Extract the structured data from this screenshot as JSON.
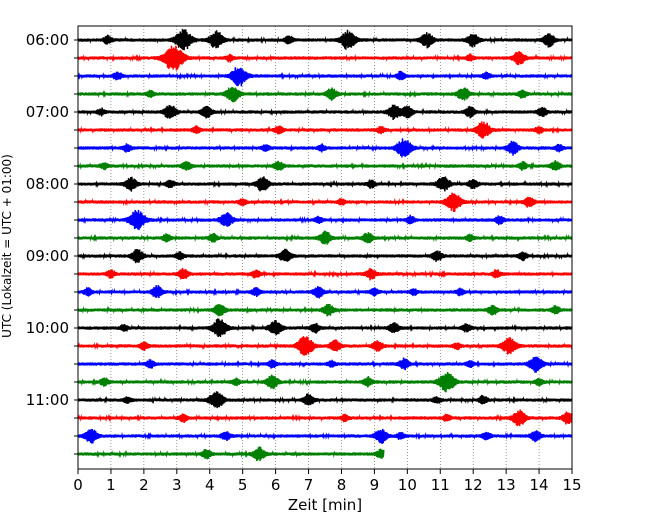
{
  "chart_data": {
    "type": "line",
    "subtype": "helicorder-seismogram",
    "xlabel": "Zeit  [min]",
    "ylabel": "UTC (Lokalzeit = UTC + 01:00)",
    "xlim": [
      0,
      15
    ],
    "x_ticks": [
      0,
      1,
      2,
      3,
      4,
      5,
      6,
      7,
      8,
      9,
      10,
      11,
      12,
      13,
      14,
      15
    ],
    "x_tick_labels": [
      "0",
      "1",
      "2",
      "3",
      "4",
      "5",
      "6",
      "7",
      "8",
      "9",
      "10",
      "11",
      "12",
      "13",
      "14",
      "15"
    ],
    "y_tick_labels": [
      "06:00",
      "07:00",
      "08:00",
      "09:00",
      "10:00",
      "11:00"
    ],
    "minutes_per_trace": 15,
    "vertical_grid": "dotted",
    "colors": [
      "#000000",
      "#ff0000",
      "#0000ff",
      "#008000"
    ],
    "traces": [
      {
        "start": "06:00",
        "color": "#000000",
        "end_min": 15,
        "bursts": [
          [
            3.2,
            1.6
          ],
          [
            4.2,
            1.3
          ],
          [
            8.2,
            1.4
          ],
          [
            10.6,
            1.1
          ],
          [
            12.0,
            1.0
          ],
          [
            14.3,
            1.0
          ],
          [
            0.9,
            0.6
          ],
          [
            6.4,
            0.6
          ]
        ]
      },
      {
        "start": "06:15",
        "color": "#ff0000",
        "end_min": 15,
        "bursts": [
          [
            2.9,
            2.0
          ],
          [
            13.4,
            1.0
          ],
          [
            4.6,
            0.5
          ],
          [
            11.9,
            0.5
          ]
        ]
      },
      {
        "start": "06:30",
        "color": "#0000ff",
        "end_min": 15,
        "bursts": [
          [
            4.9,
            1.5
          ],
          [
            1.2,
            0.6
          ],
          [
            9.8,
            0.6
          ],
          [
            12.4,
            0.5
          ]
        ]
      },
      {
        "start": "06:45",
        "color": "#008000",
        "end_min": 15,
        "bursts": [
          [
            4.7,
            1.2
          ],
          [
            7.7,
            0.9
          ],
          [
            11.7,
            1.0
          ],
          [
            13.5,
            0.6
          ],
          [
            2.2,
            0.5
          ]
        ]
      },
      {
        "start": "07:00",
        "color": "#000000",
        "end_min": 15,
        "bursts": [
          [
            2.8,
            1.1
          ],
          [
            3.9,
            0.9
          ],
          [
            9.6,
            1.1
          ],
          [
            10.0,
            0.9
          ],
          [
            11.9,
            0.8
          ],
          [
            14.1,
            0.7
          ],
          [
            0.7,
            0.5
          ]
        ]
      },
      {
        "start": "07:15",
        "color": "#ff0000",
        "end_min": 15,
        "bursts": [
          [
            12.3,
            1.3
          ],
          [
            3.6,
            0.5
          ],
          [
            6.1,
            0.6
          ],
          [
            9.2,
            0.5
          ],
          [
            14.0,
            0.5
          ]
        ]
      },
      {
        "start": "07:30",
        "color": "#0000ff",
        "end_min": 15,
        "bursts": [
          [
            9.9,
            1.4
          ],
          [
            13.2,
            1.0
          ],
          [
            1.5,
            0.6
          ],
          [
            5.7,
            0.5
          ],
          [
            7.4,
            0.5
          ],
          [
            14.6,
            0.5
          ]
        ]
      },
      {
        "start": "07:45",
        "color": "#008000",
        "end_min": 15,
        "bursts": [
          [
            3.3,
            0.7
          ],
          [
            6.1,
            0.7
          ],
          [
            13.5,
            0.6
          ],
          [
            14.5,
            0.7
          ],
          [
            0.8,
            0.5
          ]
        ]
      },
      {
        "start": "08:00",
        "color": "#000000",
        "end_min": 15,
        "bursts": [
          [
            1.6,
            1.0
          ],
          [
            5.6,
            1.1
          ],
          [
            11.1,
            1.1
          ],
          [
            12.0,
            0.7
          ],
          [
            2.8,
            0.6
          ],
          [
            8.9,
            0.6
          ]
        ]
      },
      {
        "start": "08:15",
        "color": "#ff0000",
        "end_min": 15,
        "bursts": [
          [
            11.4,
            1.4
          ],
          [
            13.7,
            0.8
          ],
          [
            5.0,
            0.5
          ],
          [
            8.0,
            0.5
          ]
        ]
      },
      {
        "start": "08:30",
        "color": "#0000ff",
        "end_min": 15,
        "bursts": [
          [
            1.8,
            1.5
          ],
          [
            4.5,
            1.1
          ],
          [
            10.1,
            0.6
          ],
          [
            12.8,
            0.6
          ],
          [
            7.3,
            0.5
          ]
        ]
      },
      {
        "start": "08:45",
        "color": "#008000",
        "end_min": 15,
        "bursts": [
          [
            7.5,
            1.0
          ],
          [
            8.8,
            0.8
          ],
          [
            2.7,
            0.6
          ],
          [
            4.1,
            0.6
          ],
          [
            11.9,
            0.5
          ]
        ]
      },
      {
        "start": "09:00",
        "color": "#000000",
        "end_min": 15,
        "bursts": [
          [
            1.8,
            1.0
          ],
          [
            6.3,
            1.0
          ],
          [
            10.9,
            0.8
          ],
          [
            3.1,
            0.6
          ],
          [
            13.5,
            0.6
          ]
        ]
      },
      {
        "start": "09:15",
        "color": "#ff0000",
        "end_min": 15,
        "bursts": [
          [
            3.2,
            0.8
          ],
          [
            8.9,
            0.8
          ],
          [
            1.0,
            0.6
          ],
          [
            5.4,
            0.6
          ],
          [
            12.7,
            0.6
          ]
        ]
      },
      {
        "start": "09:30",
        "color": "#0000ff",
        "end_min": 15,
        "bursts": [
          [
            2.4,
            0.9
          ],
          [
            7.3,
            0.8
          ],
          [
            0.3,
            0.6
          ],
          [
            5.4,
            0.6
          ],
          [
            9.0,
            0.6
          ],
          [
            10.2,
            0.5
          ],
          [
            11.6,
            0.5
          ]
        ]
      },
      {
        "start": "09:45",
        "color": "#008000",
        "end_min": 15,
        "bursts": [
          [
            4.3,
            0.9
          ],
          [
            7.6,
            0.9
          ],
          [
            12.6,
            0.7
          ],
          [
            14.5,
            0.6
          ]
        ]
      },
      {
        "start": "10:00",
        "color": "#000000",
        "end_min": 15,
        "bursts": [
          [
            4.3,
            1.4
          ],
          [
            6.0,
            1.1
          ],
          [
            7.2,
            0.7
          ],
          [
            9.6,
            0.8
          ],
          [
            11.8,
            0.6
          ],
          [
            1.4,
            0.5
          ]
        ]
      },
      {
        "start": "10:15",
        "color": "#ff0000",
        "end_min": 15,
        "bursts": [
          [
            6.9,
            1.5
          ],
          [
            13.1,
            1.3
          ],
          [
            7.8,
            0.9
          ],
          [
            9.1,
            0.8
          ],
          [
            2.0,
            0.6
          ],
          [
            11.5,
            0.5
          ]
        ]
      },
      {
        "start": "10:30",
        "color": "#0000ff",
        "end_min": 15,
        "bursts": [
          [
            13.9,
            1.2
          ],
          [
            9.9,
            0.8
          ],
          [
            2.2,
            0.6
          ],
          [
            5.9,
            0.6
          ],
          [
            7.7,
            0.5
          ],
          [
            11.9,
            0.5
          ]
        ]
      },
      {
        "start": "10:45",
        "color": "#008000",
        "end_min": 15,
        "bursts": [
          [
            11.2,
            1.5
          ],
          [
            5.9,
            1.0
          ],
          [
            8.8,
            0.7
          ],
          [
            0.8,
            0.6
          ],
          [
            4.8,
            0.5
          ],
          [
            14.0,
            0.5
          ]
        ]
      },
      {
        "start": "11:00",
        "color": "#000000",
        "end_min": 15,
        "bursts": [
          [
            4.2,
            1.3
          ],
          [
            7.0,
            0.9
          ],
          [
            1.5,
            0.5
          ],
          [
            10.9,
            0.5
          ],
          [
            12.3,
            0.6
          ]
        ]
      },
      {
        "start": "11:15",
        "color": "#ff0000",
        "end_min": 15,
        "bursts": [
          [
            13.4,
            1.2
          ],
          [
            14.9,
            1.0
          ],
          [
            3.2,
            0.6
          ],
          [
            8.1,
            0.5
          ],
          [
            11.2,
            0.5
          ]
        ]
      },
      {
        "start": "11:30",
        "color": "#0000ff",
        "end_min": 15,
        "bursts": [
          [
            0.4,
            1.1
          ],
          [
            9.2,
            1.1
          ],
          [
            13.9,
            0.8
          ],
          [
            4.5,
            0.7
          ],
          [
            12.4,
            0.6
          ],
          [
            9.8,
            0.5
          ]
        ]
      },
      {
        "start": "11:45",
        "color": "#008000",
        "end_min": 9.3,
        "bursts": [
          [
            5.5,
            1.0
          ],
          [
            3.9,
            0.7
          ],
          [
            9.2,
            0.7
          ]
        ]
      }
    ]
  }
}
